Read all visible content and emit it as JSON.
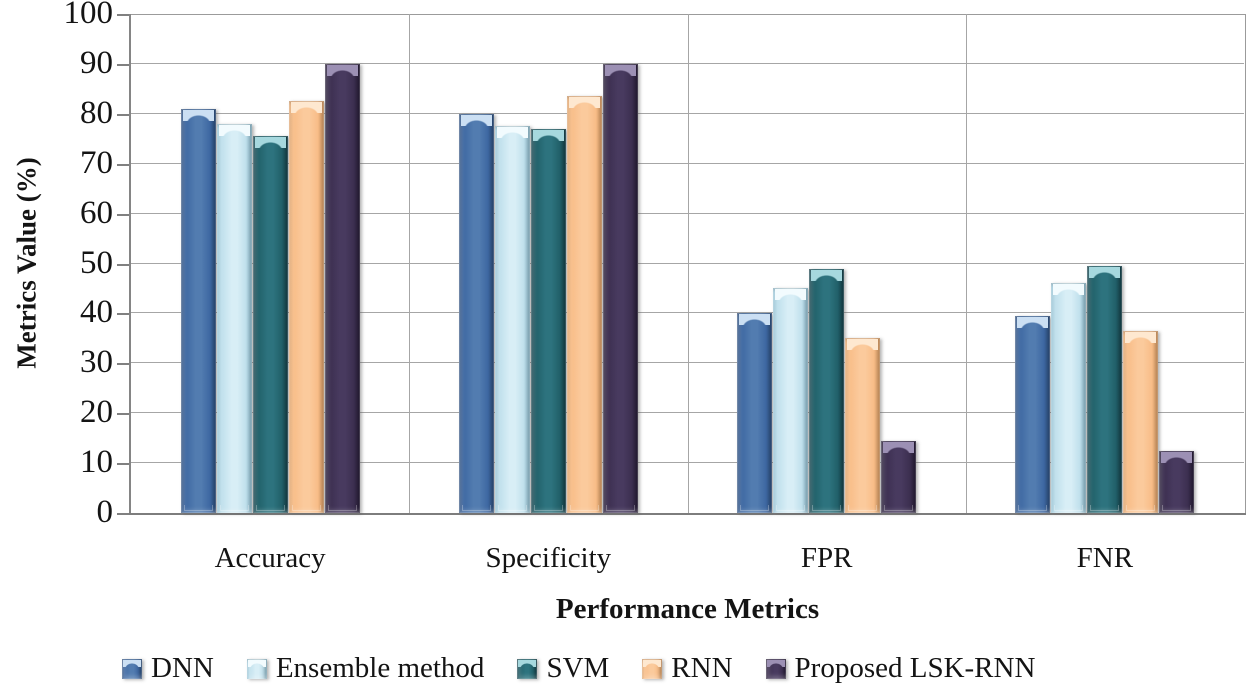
{
  "chart_data": {
    "type": "bar",
    "title": "",
    "xlabel": "Performance Metrics",
    "ylabel": "Metrics Value (%)",
    "categories": [
      "Accuracy",
      "Specificity",
      "FPR",
      "FNR"
    ],
    "series": [
      {
        "name": "DNN",
        "values": [
          81,
          80,
          40,
          39.5
        ],
        "color": "#3E68A2",
        "edge": "#2E4F7D",
        "light": "#527CB0",
        "highlight": "#CBDFF3"
      },
      {
        "name": "Ensemble method",
        "values": [
          78,
          77.5,
          45,
          46
        ],
        "color": "#C0E0EC",
        "edge": "#8FBDD0",
        "light": "#D8EEF6",
        "highlight": "#F2FBFE"
      },
      {
        "name": "SVM",
        "values": [
          75.5,
          77,
          49,
          49.5
        ],
        "color": "#216069",
        "edge": "#16404A",
        "light": "#2D737E",
        "highlight": "#A6D8DE"
      },
      {
        "name": "RNN",
        "values": [
          82.5,
          83.5,
          35,
          36.5
        ],
        "color": "#F8BD88",
        "edge": "#D99D65",
        "light": "#FBCA9C",
        "highlight": "#FEE8D0"
      },
      {
        "name": "Proposed LSK-RNN",
        "values": [
          90,
          90,
          14.5,
          12.5
        ],
        "color": "#3C2F50",
        "edge": "#271D37",
        "light": "#483A5F",
        "highlight": "#9C90B4"
      }
    ],
    "ylim": [
      0,
      100
    ],
    "ytick_step": 10,
    "grid": true,
    "legend_position": "bottom",
    "axis_color": "#808080",
    "grid_color": "#A6A6A6",
    "background": "#FFFFFF"
  }
}
